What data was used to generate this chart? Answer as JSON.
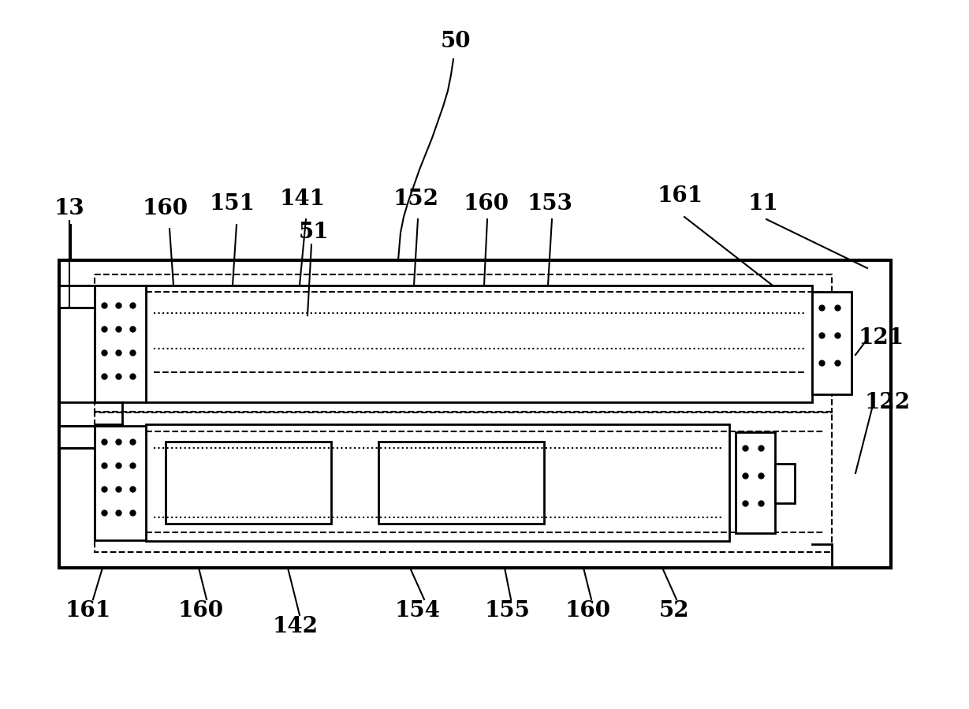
{
  "bg_color": "#ffffff",
  "line_color": "#000000",
  "fig_width": 12.29,
  "fig_height": 8.99,
  "label_fontsize": 20
}
